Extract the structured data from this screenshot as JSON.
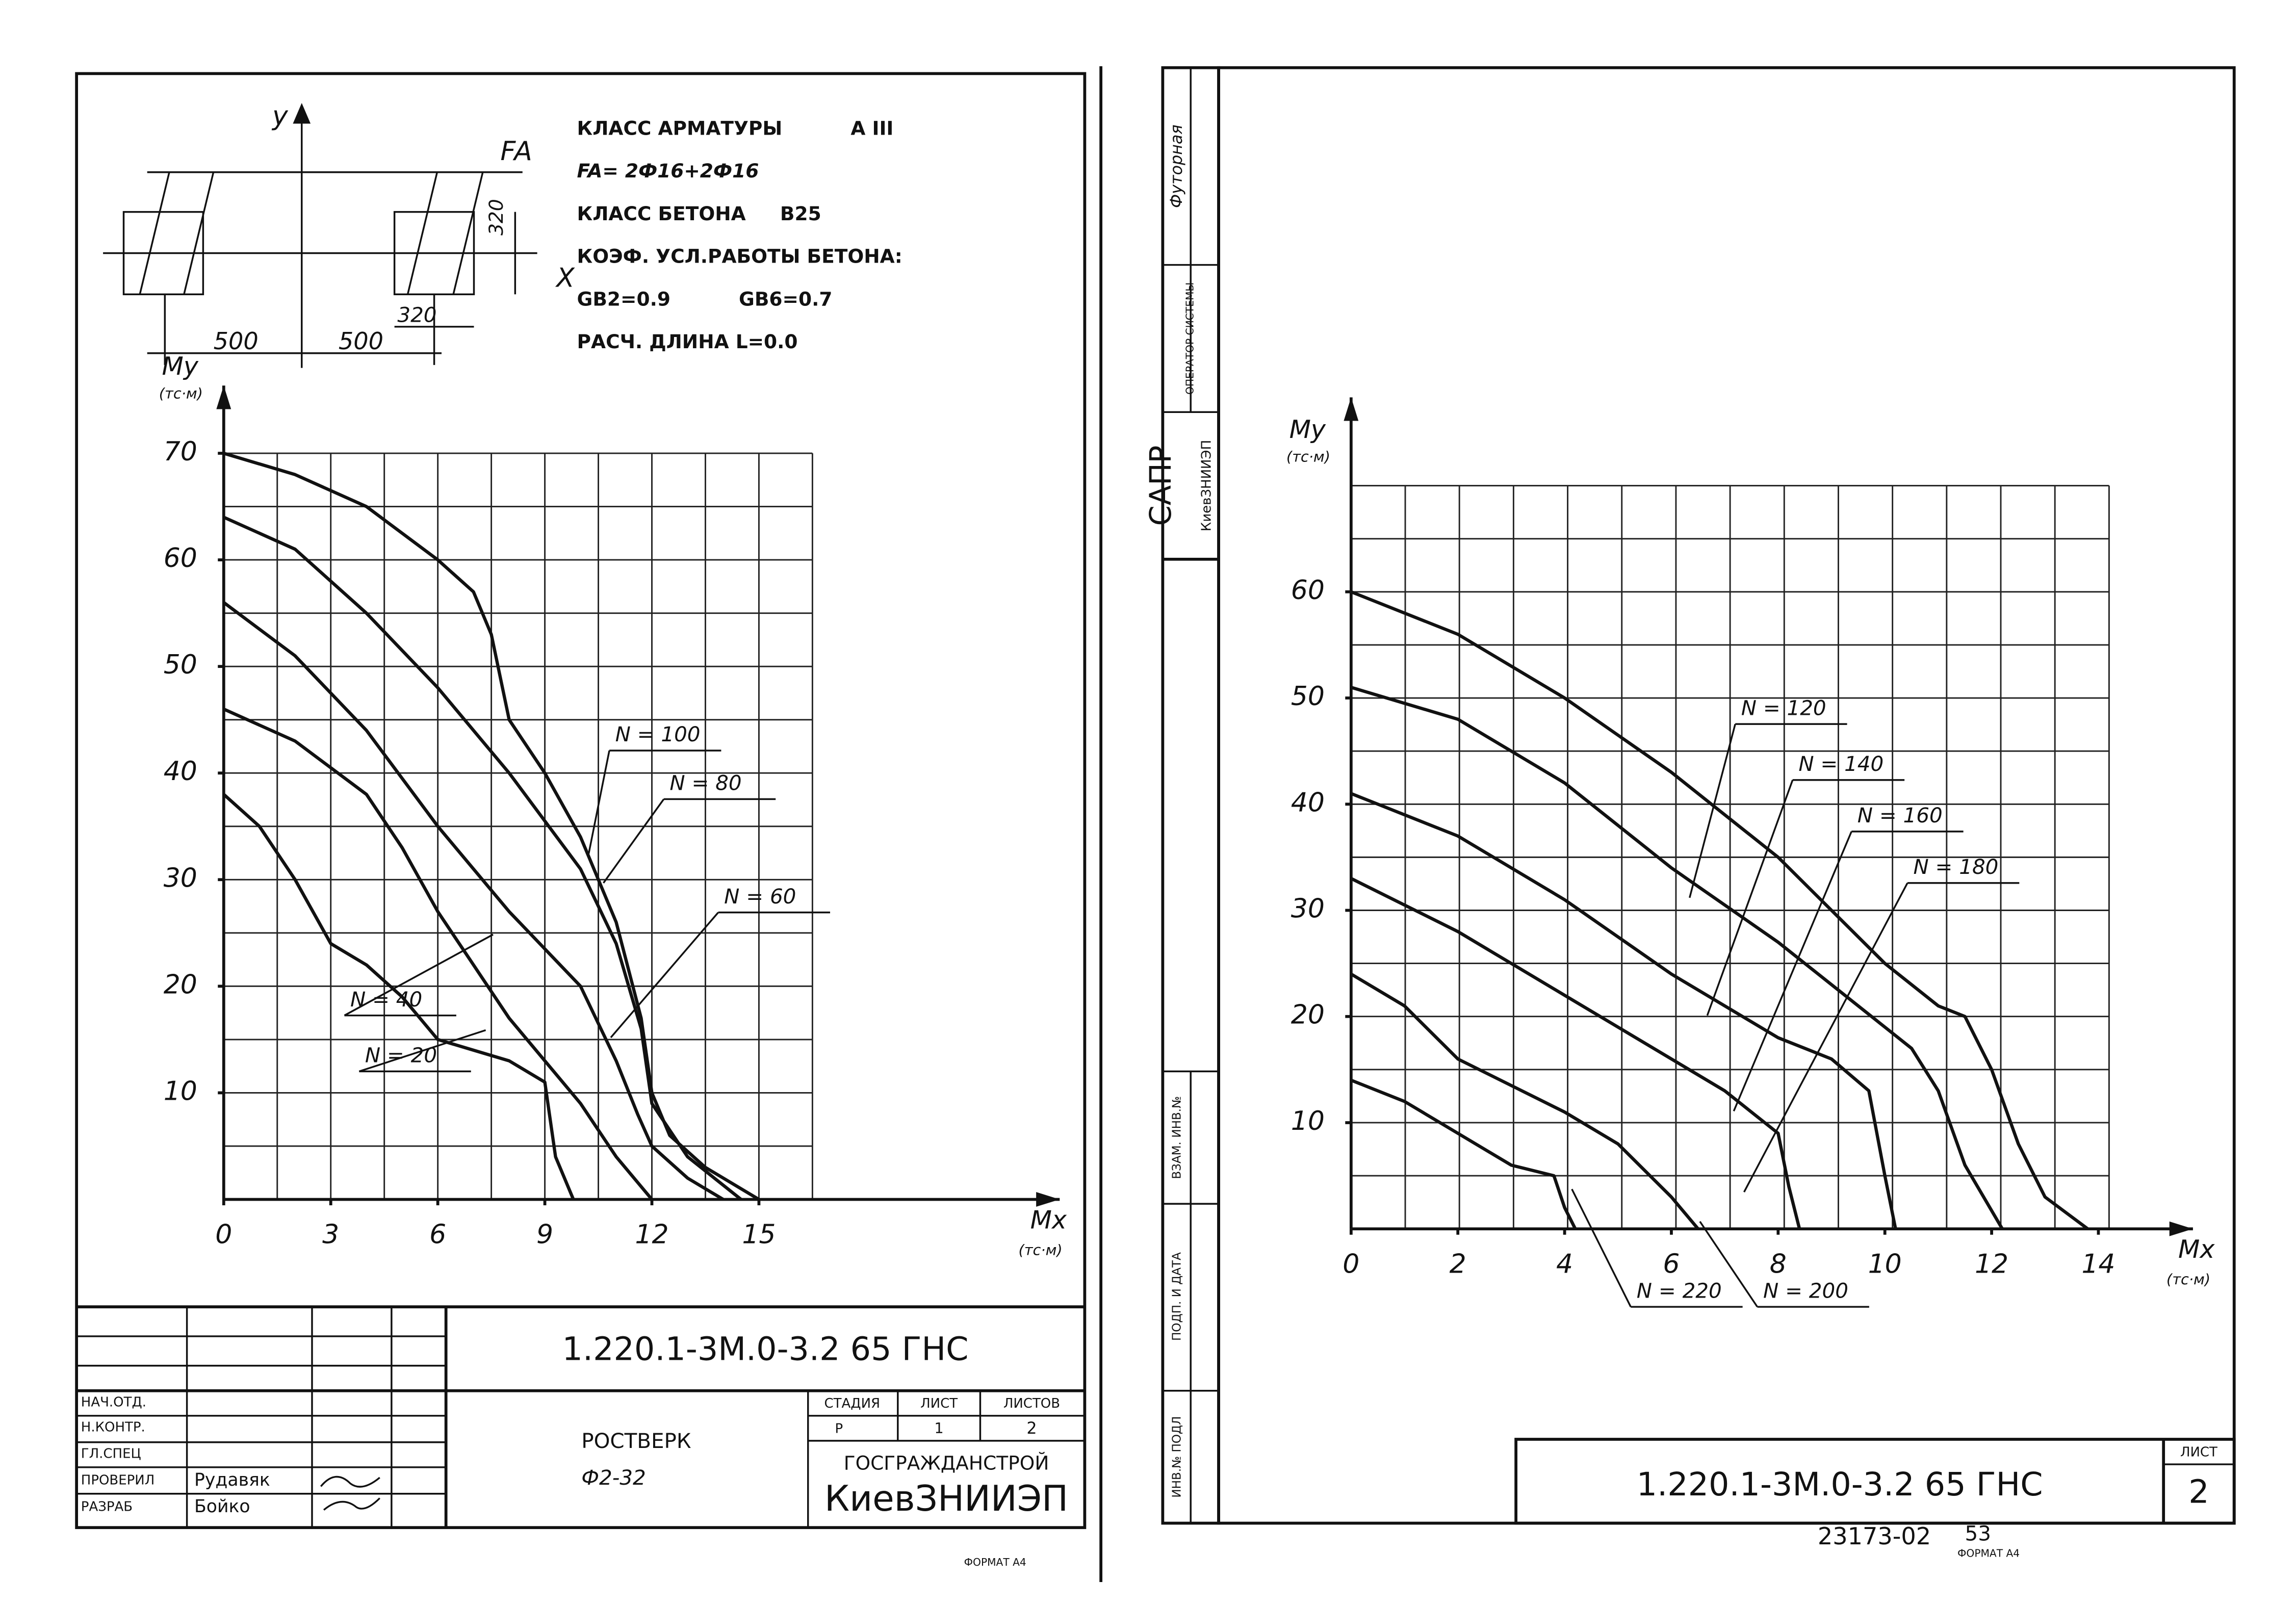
{
  "chart_data": [
    {
      "type": "line",
      "y_label": "My",
      "y_unit": "(тс·м)",
      "x_label": "Mx",
      "x_unit": "(тс·м)",
      "xlim": [
        0,
        16.5
      ],
      "ylim": [
        0,
        70
      ],
      "xticks": [
        0,
        3,
        6,
        9,
        12,
        15
      ],
      "yticks": [
        10,
        20,
        30,
        40,
        50,
        60,
        70
      ],
      "grid": true,
      "color": "#111111",
      "series": [
        {
          "name": "N = 100",
          "x": [
            0,
            2,
            4,
            6,
            7,
            7.5,
            8,
            9,
            10,
            11,
            11.7,
            12,
            12.5,
            13.5,
            15
          ],
          "values": [
            70,
            68,
            65,
            60,
            57,
            53,
            45,
            40,
            34,
            26,
            17,
            10,
            6,
            3,
            0
          ]
        },
        {
          "name": "N = 80",
          "x": [
            0,
            2,
            4,
            6,
            8,
            10,
            11,
            11.7,
            12,
            13,
            14.5
          ],
          "values": [
            64,
            61,
            55,
            48,
            40,
            31,
            24,
            16,
            9,
            4,
            0
          ]
        },
        {
          "name": "N = 60",
          "x": [
            0,
            2,
            4,
            6,
            8,
            10,
            11,
            11.6,
            12,
            13,
            14
          ],
          "values": [
            56,
            51,
            44,
            35,
            27,
            20,
            13,
            8,
            5,
            2,
            0
          ]
        },
        {
          "name": "N = 40",
          "x": [
            0,
            2,
            4,
            5,
            6,
            7,
            8,
            9,
            10,
            11,
            12
          ],
          "values": [
            46,
            43,
            38,
            33,
            27,
            22,
            17,
            13,
            9,
            4,
            0
          ]
        },
        {
          "name": "N = 20",
          "x": [
            0,
            1,
            2,
            3,
            4,
            5,
            6,
            7,
            8,
            9,
            9.3,
            9.8
          ],
          "values": [
            38,
            35,
            30,
            24,
            22,
            19,
            15,
            14,
            13,
            11,
            4,
            0
          ]
        }
      ]
    },
    {
      "type": "line",
      "y_label": "My",
      "y_unit": "(тс·м)",
      "x_label": "Mx",
      "x_unit": "(тс·м)",
      "xlim": [
        0,
        14.2
      ],
      "ylim": [
        0,
        70
      ],
      "xticks": [
        0,
        2,
        4,
        6,
        8,
        10,
        12,
        14
      ],
      "yticks": [
        10,
        20,
        30,
        40,
        50,
        60
      ],
      "grid": true,
      "color": "#111111",
      "series": [
        {
          "name": "N = 120",
          "x": [
            0,
            2,
            4,
            6,
            8,
            9,
            10,
            11,
            11.5,
            12,
            12.5,
            13,
            13.8
          ],
          "values": [
            60,
            56,
            50,
            43,
            35,
            30,
            25,
            21,
            20,
            15,
            8,
            3,
            0
          ]
        },
        {
          "name": "N = 140",
          "x": [
            0,
            2,
            4,
            6,
            8,
            9,
            10,
            10.5,
            11,
            11.5,
            12.2
          ],
          "values": [
            51,
            48,
            42,
            34,
            27,
            23,
            19,
            17,
            13,
            6,
            0
          ]
        },
        {
          "name": "N = 160",
          "x": [
            0,
            2,
            4,
            6,
            8,
            9,
            9.7,
            10,
            10.2
          ],
          "values": [
            41,
            37,
            31,
            24,
            18,
            16,
            13,
            5,
            0
          ]
        },
        {
          "name": "N = 180",
          "x": [
            0,
            2,
            4,
            6,
            7,
            8,
            8.2,
            8.4
          ],
          "values": [
            33,
            28,
            22,
            16,
            13,
            9,
            4,
            0
          ]
        },
        {
          "name": "N = 200",
          "x": [
            0,
            1,
            2,
            4,
            5,
            6,
            6.5
          ],
          "values": [
            24,
            21,
            16,
            11,
            8,
            3,
            0
          ]
        },
        {
          "name": "N = 220",
          "x": [
            0,
            1,
            2,
            3,
            3.8,
            4,
            4.2
          ],
          "values": [
            14,
            12,
            9,
            6,
            5,
            2,
            0
          ]
        }
      ]
    }
  ],
  "left_sheet": {
    "section": {
      "y": "y",
      "fa": "FA",
      "x": "X",
      "dim_320_v": "320",
      "dim_320_h": "320",
      "dim_500_left": "500",
      "dim_500_right": "500"
    },
    "specs": {
      "rebar_class": "КЛАСС АРМАТУРЫ",
      "rebar_class_value": "А III",
      "fa": "FA= 2Ф16+2Ф16",
      "concrete_class": "КЛАСС БЕТОНА",
      "concrete_class_value": "B25",
      "coef": "КОЭФ. УСЛ.РАБОТЫ БЕТОНА:",
      "gb2": "GB2=0.9",
      "gb6": "GB6=0.7",
      "length": "РАСЧ. ДЛИНА  L=0.0"
    },
    "title_block": {
      "code": "1.220.1-3М.0-3.2  65 ГНС",
      "roles": [
        "НАЧ.ОТД.",
        "Н.КОНТР.",
        "ГЛ.СПЕЦ",
        "ПРОВЕРИЛ",
        "РАЗРАБ"
      ],
      "names": [
        "Рудавяк",
        "Бойко"
      ],
      "object": "РОСТВЕРК",
      "mark": "Ф2-32",
      "stage_header": "СТАДИЯ",
      "sheet_header": "ЛИСТ",
      "sheets_header": "ЛИСТОВ",
      "stage": "Р",
      "sheet": "1",
      "sheets": "2",
      "org": "ГОСГРАЖДАНСТРОЙ",
      "institute": "КиевЗНИИЭП"
    },
    "format": "ФОРМАТ А4"
  },
  "right_sheet": {
    "side": {
      "sapr": "САПР",
      "institute": "КиевЗНИИЭП",
      "operator": "ОПЕРАТОР СИСТЕМЫ",
      "name": "Футорная",
      "replace": "ВЗАМ. ИНВ.№",
      "sign_date": "ПОДП. И ДАТА",
      "orig": "ИНВ.№ ПОДЛ"
    },
    "code": "1.220.1-3М.0-3.2  65 ГНС",
    "sheet_header": "ЛИСТ",
    "sheet": "2",
    "archive": "23173-02",
    "archive_page": "53",
    "format": "ФОРМАТ А4"
  }
}
